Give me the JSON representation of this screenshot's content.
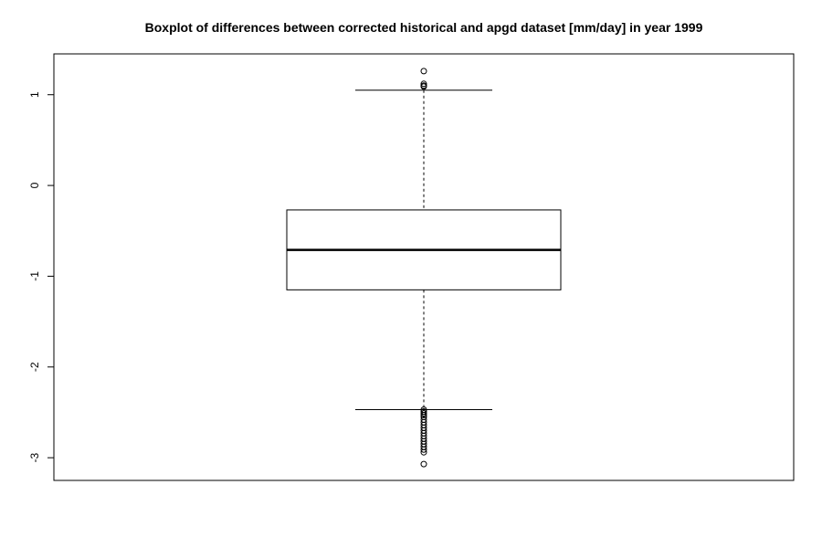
{
  "chart_data": {
    "type": "boxplot",
    "title": "Boxplot of differences between corrected historical and apgd dataset [mm/day] in year 1999",
    "xlabel": "",
    "ylabel": "",
    "ylim": [
      -3.25,
      1.45
    ],
    "yticks": [
      1,
      0,
      -1,
      -2,
      -3
    ],
    "ytick_labels": [
      "1",
      "0",
      "-1",
      "-2",
      "-3"
    ],
    "grid": false,
    "legend": "none",
    "box": {
      "whisker_high": 1.05,
      "q3": -0.27,
      "median": -0.71,
      "q1": -1.15,
      "whisker_low": -2.47
    },
    "outliers": [
      1.26,
      1.12,
      1.1,
      1.09,
      -2.47,
      -2.49,
      -2.51,
      -2.53,
      -2.55,
      -2.58,
      -2.61,
      -2.64,
      -2.67,
      -2.7,
      -2.73,
      -2.76,
      -2.79,
      -2.82,
      -2.85,
      -2.88,
      -2.91,
      -2.94,
      -3.07
    ]
  }
}
